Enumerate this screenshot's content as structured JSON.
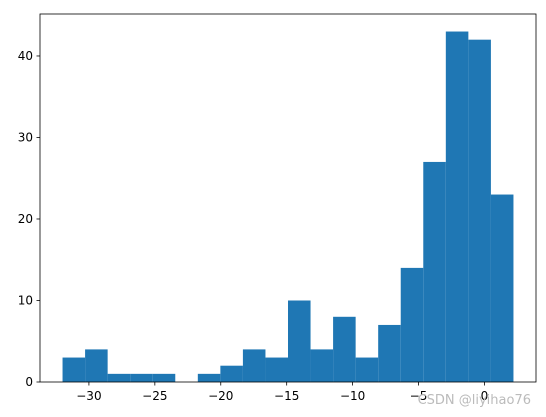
{
  "chart_data": {
    "type": "histogram",
    "color": "#1f77b4",
    "bins": [
      -32,
      -30.29,
      -28.58,
      -26.87,
      -25.16,
      -23.45,
      -21.74,
      -20.03,
      -18.32,
      -16.61,
      -14.9,
      -13.19,
      -11.48,
      -9.77,
      -8.06,
      -6.35,
      -4.64,
      -2.93,
      -1.22,
      0.49,
      2.2
    ],
    "values": [
      3,
      4,
      1,
      1,
      1,
      0,
      1,
      2,
      4,
      3,
      10,
      4,
      8,
      3,
      7,
      14,
      27,
      43,
      42,
      23
    ],
    "xlim": [
      -33.71,
      3.91
    ],
    "ylim": [
      0,
      45.15
    ],
    "xticks": [
      {
        "value": -30,
        "label": "−30"
      },
      {
        "value": -25,
        "label": "−25"
      },
      {
        "value": -20,
        "label": "−20"
      },
      {
        "value": -15,
        "label": "−15"
      },
      {
        "value": -10,
        "label": "−10"
      },
      {
        "value": -5,
        "label": "−5"
      },
      0
    ],
    "yticks": [
      0,
      10,
      20,
      30,
      40
    ],
    "watermark": "CSDN @liyihao76"
  }
}
